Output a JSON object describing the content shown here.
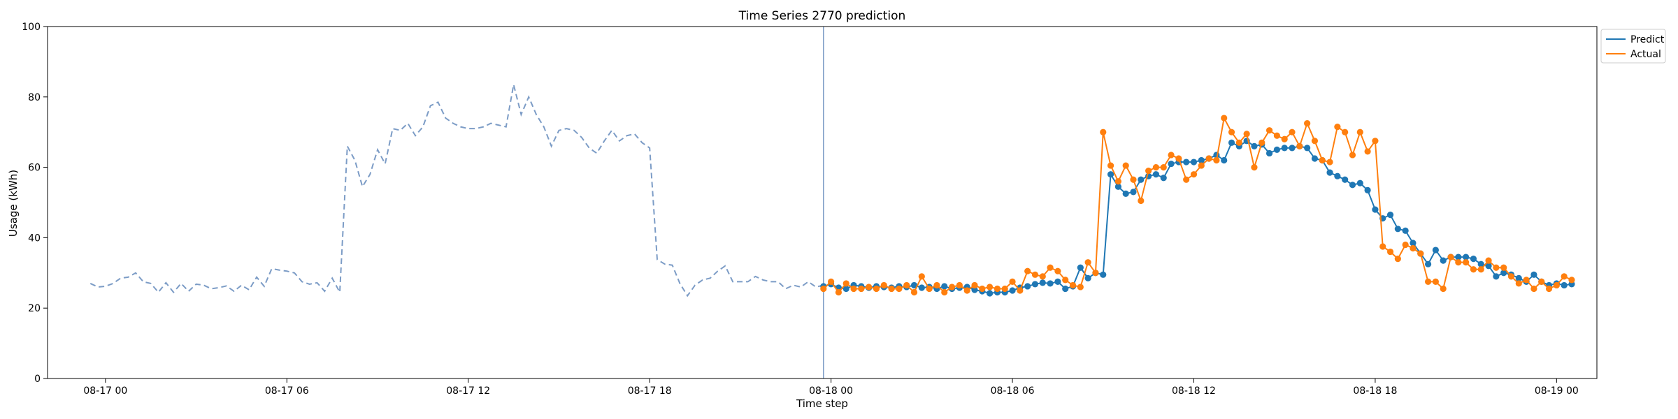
{
  "chart_data": {
    "type": "line",
    "title": "Time Series 2770 prediction",
    "xlabel": "Time step",
    "ylabel": "Usage (kWh)",
    "ylim": [
      0,
      100
    ],
    "yticks": [
      0,
      20,
      40,
      60,
      80,
      100
    ],
    "xlim": [
      "08-16 22:05",
      "08-19 01:20"
    ],
    "xticks": [
      {
        "x": "08-17 00:00",
        "label": "08-17 00"
      },
      {
        "x": "08-17 06:00",
        "label": "08-17 06"
      },
      {
        "x": "08-17 12:00",
        "label": "08-17 12"
      },
      {
        "x": "08-17 18:00",
        "label": "08-17 18"
      },
      {
        "x": "08-18 00:00",
        "label": "08-18 00"
      },
      {
        "x": "08-18 06:00",
        "label": "08-18 06"
      },
      {
        "x": "08-18 12:00",
        "label": "08-18 12"
      },
      {
        "x": "08-18 18:00",
        "label": "08-18 18"
      },
      {
        "x": "08-19 00:00",
        "label": "08-19 00"
      }
    ],
    "forecast_start": "08-17 23:45",
    "legend_position": "top-right",
    "history": {
      "color": "#7c9cc6",
      "style": "dashed",
      "start": "08-16 23:30",
      "step_minutes": 15,
      "values": [
        27.0,
        26.0,
        26.2,
        27.0,
        28.5,
        28.8,
        30.0,
        27.5,
        27.0,
        24.5,
        27.2,
        24.5,
        27.0,
        24.8,
        26.8,
        26.5,
        25.5,
        25.8,
        26.3,
        24.8,
        26.5,
        25.2,
        28.8,
        26.2,
        31.2,
        30.8,
        30.5,
        30.0,
        27.5,
        26.8,
        27.2,
        24.8,
        28.5,
        24.5,
        66.0,
        62.0,
        54.5,
        58.0,
        65.0,
        61.0,
        71.0,
        70.5,
        72.5,
        69.0,
        71.5,
        77.5,
        78.5,
        74.0,
        72.5,
        71.5,
        71.0,
        71.0,
        71.5,
        72.5,
        72.0,
        71.5,
        83.5,
        75.0,
        80.0,
        75.0,
        71.5,
        66.0,
        70.5,
        71.0,
        70.5,
        68.5,
        65.5,
        64.0,
        67.5,
        70.5,
        67.5,
        69.0,
        69.5,
        67.0,
        65.5,
        33.8,
        32.5,
        32.2,
        27.0,
        23.5,
        26.5,
        28.0,
        28.5,
        30.5,
        32.0,
        27.5,
        27.5,
        27.5,
        29.0,
        28.0,
        27.5,
        27.5,
        25.5,
        26.5,
        26.0,
        27.5,
        26.0,
        26.5
      ]
    },
    "series": [
      {
        "name": "Predict",
        "color": "#1f77b4",
        "start": "08-17 23:45",
        "step_minutes": 15,
        "values": [
          26.2,
          26.8,
          25.8,
          25.5,
          26.5,
          26.2,
          25.8,
          26.2,
          26.0,
          25.8,
          26.2,
          26.0,
          26.5,
          25.8,
          26.0,
          25.5,
          26.2,
          25.5,
          25.8,
          26.0,
          25.2,
          24.8,
          24.2,
          24.5,
          24.5,
          25.0,
          25.8,
          26.2,
          26.8,
          27.2,
          27.0,
          27.5,
          25.5,
          26.2,
          31.5,
          28.5,
          30.0,
          29.5,
          58.0,
          54.5,
          52.5,
          53.0,
          56.5,
          57.5,
          58.0,
          57.0,
          61.0,
          61.5,
          61.5,
          61.5,
          62.0,
          62.5,
          63.5,
          62.0,
          67.0,
          66.0,
          67.5,
          66.0,
          66.5,
          64.0,
          65.0,
          65.5,
          65.5,
          66.0,
          65.5,
          62.5,
          62.0,
          58.5,
          57.5,
          56.5,
          55.0,
          55.5,
          53.5,
          48.0,
          45.5,
          46.5,
          42.5,
          42.0,
          38.5,
          35.5,
          32.5,
          36.5,
          33.5,
          34.5,
          34.5,
          34.5,
          34.0,
          32.5,
          32.0,
          29.0,
          30.0,
          29.5,
          28.5,
          27.5,
          29.5,
          27.5,
          26.5,
          27.0,
          26.5,
          26.8
        ]
      },
      {
        "name": "Actual",
        "color": "#ff7f0e",
        "start": "08-17 23:45",
        "step_minutes": 15,
        "values": [
          25.5,
          27.5,
          24.5,
          27.0,
          25.5,
          25.5,
          26.0,
          25.5,
          26.5,
          25.5,
          25.5,
          26.5,
          24.5,
          29.0,
          25.5,
          26.5,
          24.5,
          26.0,
          26.5,
          25.0,
          26.5,
          25.5,
          26.0,
          25.5,
          25.5,
          27.5,
          25.0,
          30.5,
          29.5,
          29.0,
          31.5,
          30.5,
          28.0,
          26.5,
          26.0,
          33.0,
          30.0,
          70.0,
          60.5,
          56.0,
          60.5,
          56.5,
          50.5,
          59.0,
          60.0,
          60.0,
          63.5,
          62.5,
          56.5,
          58.0,
          60.5,
          62.5,
          62.0,
          74.0,
          70.0,
          67.0,
          69.5,
          60.0,
          67.0,
          70.5,
          69.0,
          68.0,
          70.0,
          66.0,
          72.5,
          67.5,
          62.0,
          61.5,
          71.5,
          70.0,
          63.5,
          70.0,
          64.5,
          67.5,
          37.5,
          36.0,
          34.0,
          38.0,
          37.0,
          35.5,
          27.5,
          27.5,
          25.5,
          34.5,
          33.0,
          33.0,
          31.0,
          31.0,
          33.5,
          31.5,
          31.5,
          29.0,
          27.0,
          28.0,
          25.5,
          27.5,
          25.5,
          26.5,
          29.0,
          28.0
        ]
      }
    ]
  }
}
